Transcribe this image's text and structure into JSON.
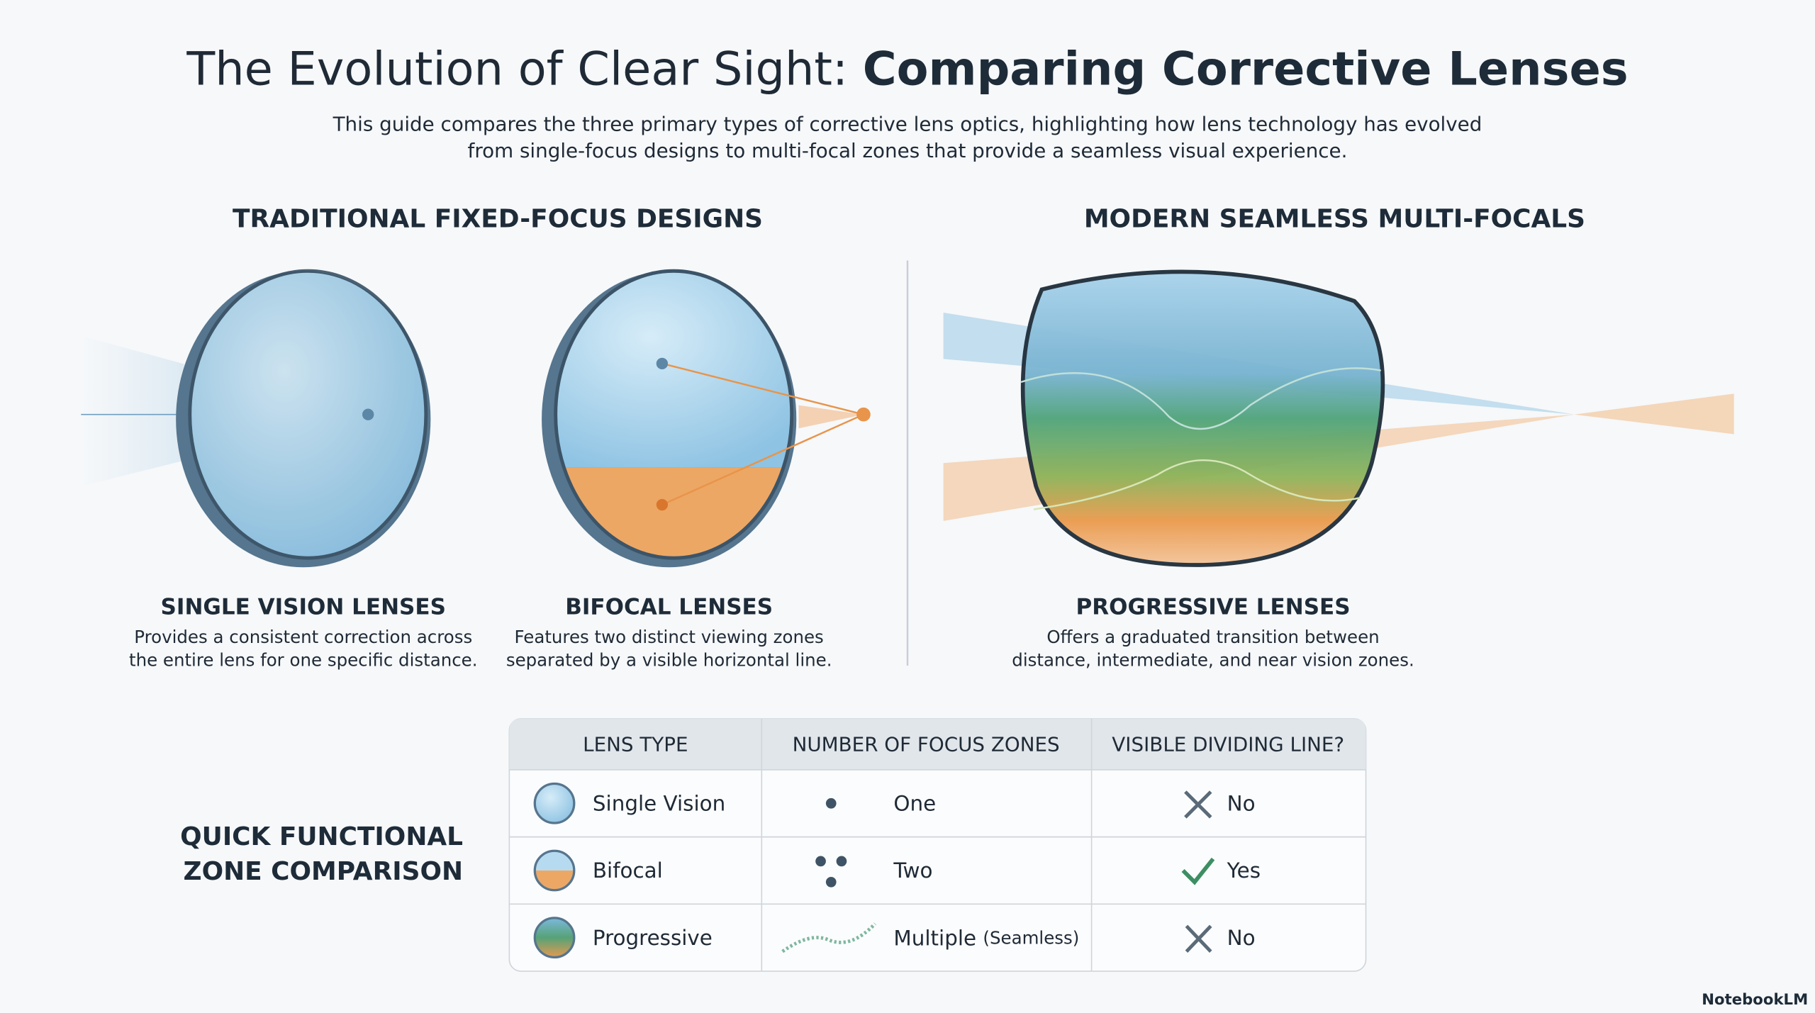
{
  "header": {
    "title_lead": "The Evolution of Clear Sight:",
    "title_bold": "Comparing Corrective Lenses",
    "subtitle": [
      "This guide compares the three primary types of corrective lens optics, highlighting how lens technology has evolved",
      "from single-focus designs to multi-focal zones that provide a seamless visual experience."
    ]
  },
  "sections": {
    "left": "TRADITIONAL FIXED-FOCUS DESIGNS",
    "right": "MODERN SEAMLESS MULTI-FOCALS"
  },
  "lenses": [
    {
      "name": "SINGLE VISION LENSES",
      "description": [
        "Provides a consistent correction across",
        "the entire lens for one specific distance."
      ]
    },
    {
      "name": "BIFOCAL LENSES",
      "description": [
        "Features two distinct viewing zones",
        "separated by a visible horizontal line."
      ]
    },
    {
      "name": "PROGRESSIVE LENSES",
      "description": [
        "Offers a graduated transition between",
        "distance, intermediate, and near vision zones."
      ]
    }
  ],
  "table": {
    "label": [
      "QUICK FUNCTIONAL",
      "ZONE COMPARISON"
    ],
    "headers": [
      "LENS TYPE",
      "NUMBER OF FOCUS ZONES",
      "VISIBLE DIVIDING LINE?"
    ],
    "rows": [
      {
        "type": "Single Vision",
        "zones": "One",
        "dividing": "No"
      },
      {
        "type": "Bifocal",
        "zones": "Two",
        "dividing": "Yes"
      },
      {
        "type": "Progressive",
        "zones": "Multiple",
        "zones_note": "(Seamless)",
        "dividing": "No"
      }
    ]
  },
  "footer": {
    "brand": "NotebookLM"
  }
}
